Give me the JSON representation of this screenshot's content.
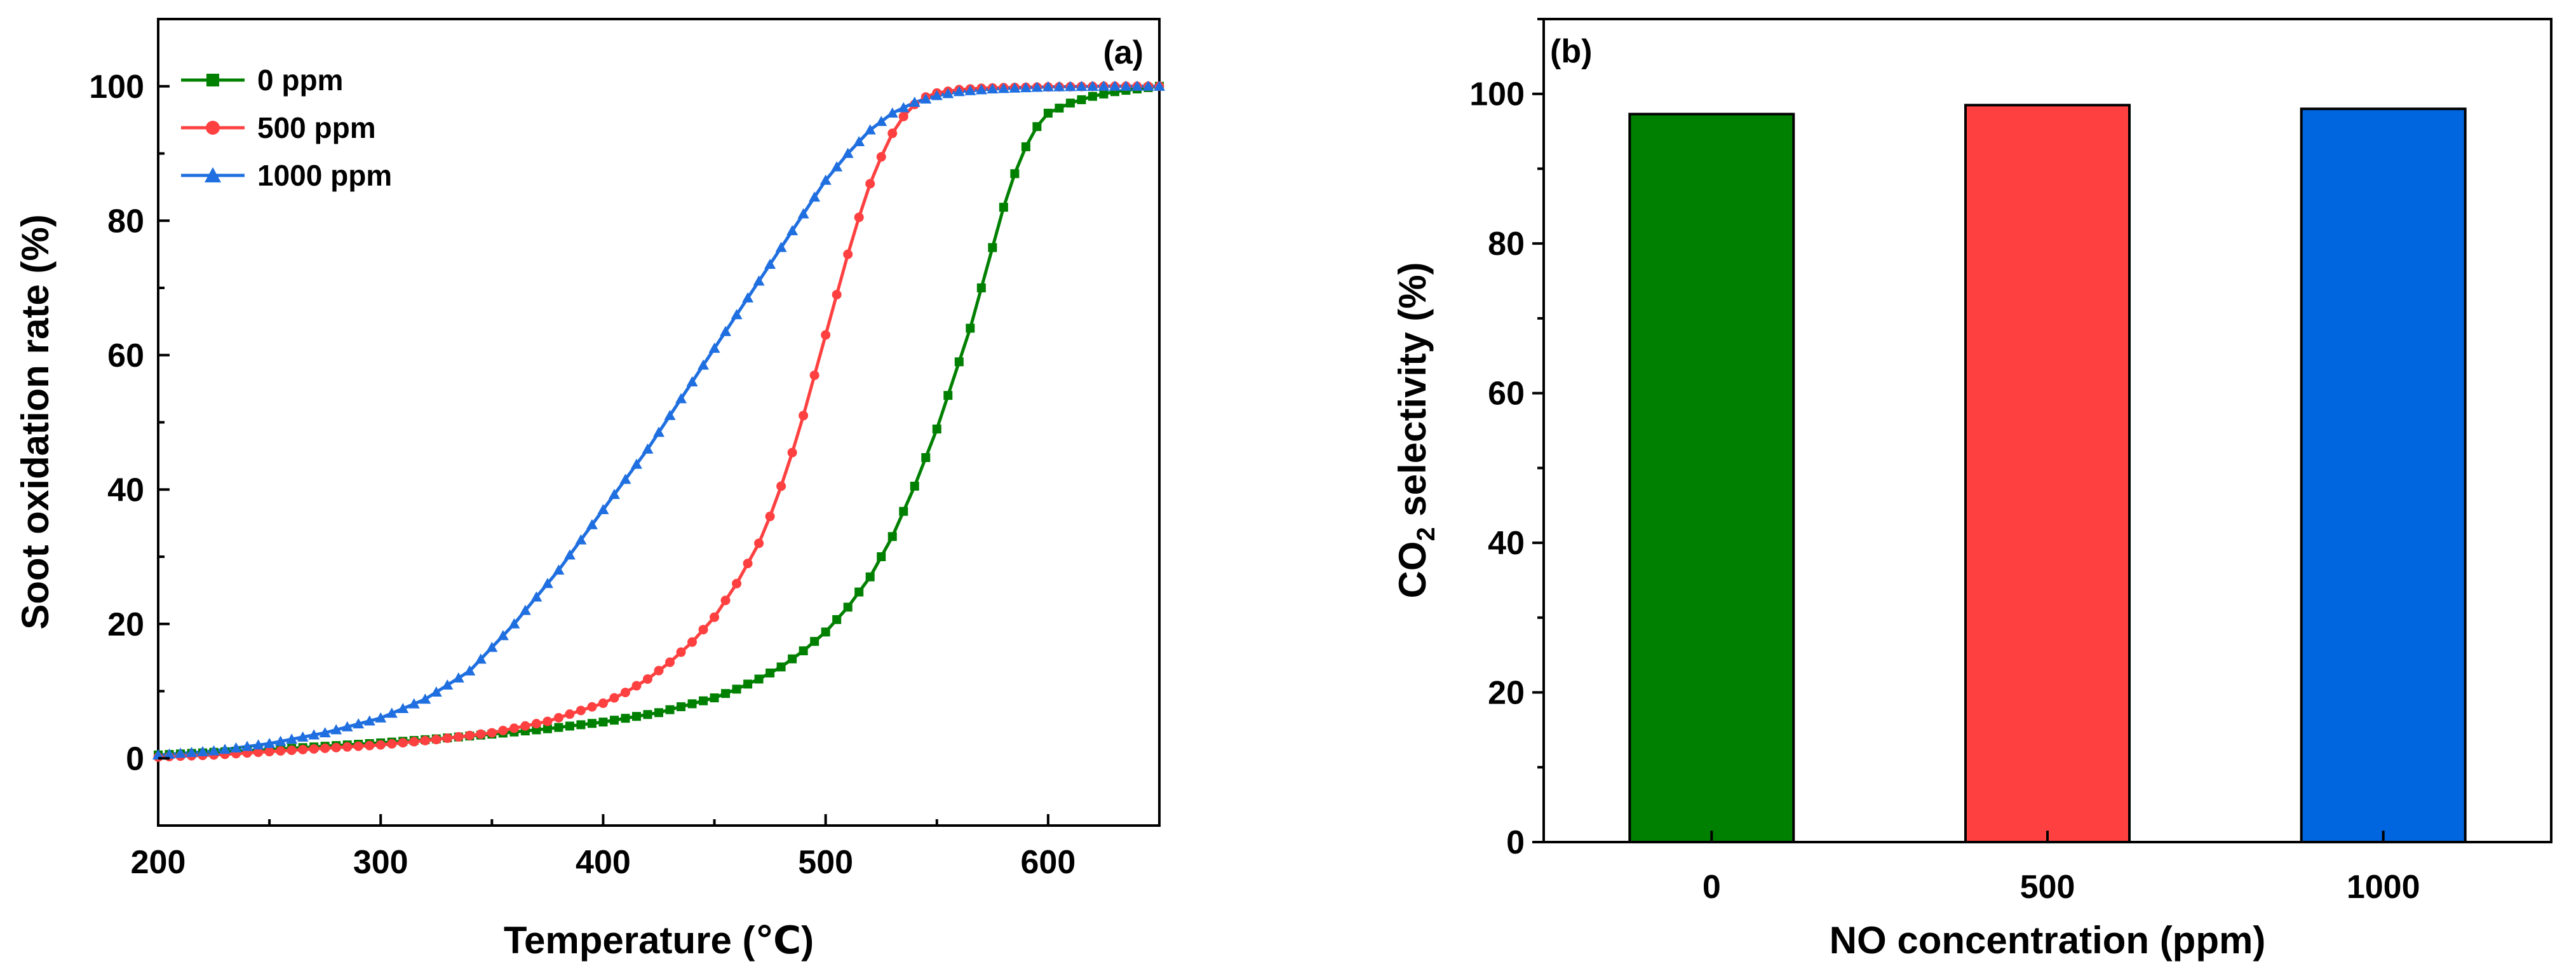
{
  "chart_data": [
    {
      "type": "line",
      "panel": "(a)",
      "xlabel": "Temperature (℃)",
      "ylabel": "Soot oxidation rate (%)",
      "xlim": [
        200,
        650
      ],
      "ylim": [
        -10,
        110
      ],
      "xticks": [
        "200",
        "300",
        "400",
        "500",
        "600"
      ],
      "xtick_values": [
        200,
        300,
        400,
        500,
        600
      ],
      "yticks": [
        "0",
        "20",
        "40",
        "60",
        "80",
        "100"
      ],
      "ytick_values": [
        0,
        20,
        40,
        60,
        80,
        100
      ],
      "legend_position": "top-left",
      "grid": false,
      "series": [
        {
          "name": "0 ppm",
          "color": "#008000",
          "marker": "square",
          "x": [
            200,
            225,
            250,
            275,
            300,
            325,
            350,
            375,
            400,
            425,
            450,
            460,
            470,
            480,
            490,
            500,
            510,
            520,
            530,
            540,
            550,
            555,
            560,
            565,
            570,
            575,
            580,
            585,
            590,
            595,
            600,
            610,
            620,
            630,
            640,
            650
          ],
          "y": [
            0.5,
            0.9,
            1.3,
            1.8,
            2.3,
            2.9,
            3.6,
            4.4,
            5.4,
            6.8,
            9,
            10.3,
            11.8,
            13.6,
            16,
            18.8,
            22.5,
            27,
            33,
            40.5,
            49,
            54,
            59,
            64,
            70,
            76,
            82,
            87,
            91,
            94,
            96,
            97.5,
            98.5,
            99.2,
            99.6,
            100
          ]
        },
        {
          "name": "500 ppm",
          "color": "#ff4040",
          "marker": "circle",
          "x": [
            200,
            225,
            250,
            275,
            300,
            325,
            350,
            375,
            400,
            410,
            420,
            430,
            440,
            450,
            460,
            470,
            475,
            480,
            485,
            490,
            495,
            500,
            505,
            510,
            515,
            520,
            525,
            530,
            535,
            540,
            545,
            550,
            560,
            570,
            580,
            600,
            625,
            650
          ],
          "y": [
            0.2,
            0.5,
            1,
            1.5,
            2,
            2.8,
            3.8,
            5.5,
            8.2,
            9.8,
            11.8,
            14.3,
            17.3,
            21,
            26,
            32,
            36,
            40.5,
            45.5,
            51,
            57,
            63,
            69,
            75,
            80.5,
            85.5,
            89.5,
            93,
            95.5,
            97.3,
            98.4,
            99,
            99.5,
            99.7,
            99.8,
            99.9,
            100,
            100
          ]
        },
        {
          "name": "1000 ppm",
          "color": "#1f6fe0",
          "marker": "triangle",
          "x": [
            200,
            225,
            250,
            275,
            300,
            320,
            340,
            360,
            380,
            400,
            420,
            440,
            460,
            480,
            500,
            510,
            520,
            530,
            540,
            550,
            560,
            575,
            600,
            625,
            650
          ],
          "y": [
            0.5,
            1.1,
            2.2,
            3.8,
            6,
            8.8,
            13,
            20,
            28,
            37,
            46,
            56,
            66,
            76,
            86,
            90,
            93.5,
            96,
            97.6,
            98.6,
            99.2,
            99.6,
            99.9,
            100,
            100
          ]
        }
      ]
    },
    {
      "type": "bar",
      "panel": "(b)",
      "xlabel": "NO concentration (ppm)",
      "ylabel_main": "CO",
      "ylabel_sub": "2",
      "ylabel_rest": " selectivity (%)",
      "ylim": [
        0,
        110
      ],
      "yticks": [
        "0",
        "20",
        "40",
        "60",
        "80",
        "100"
      ],
      "ytick_values": [
        0,
        20,
        40,
        60,
        80,
        100
      ],
      "categories": [
        "0",
        "500",
        "1000"
      ],
      "values": [
        97.3,
        98.5,
        98.0
      ],
      "colors": [
        "#008000",
        "#ff4040",
        "#0066e0"
      ],
      "grid": false
    }
  ]
}
